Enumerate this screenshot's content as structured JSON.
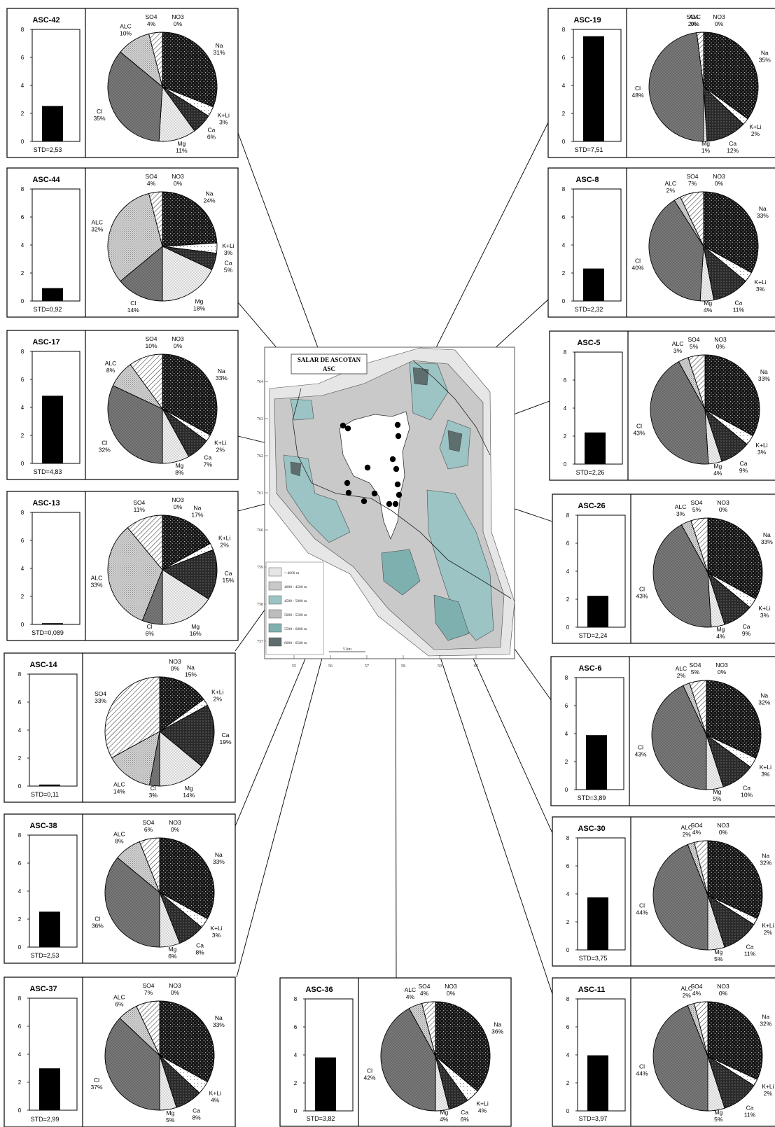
{
  "chart_data": [
    {
      "type": "pie+bar",
      "title": "ASC-42",
      "std": "STD=2,53",
      "bar_value": 2.53,
      "ylim": [
        0,
        8
      ],
      "yticks": [
        "0",
        "2",
        "4",
        "6",
        "8"
      ],
      "slices": [
        {
          "name": "NO3",
          "value": 0,
          "label": "0%"
        },
        {
          "name": "Na",
          "value": 31,
          "label": "31%"
        },
        {
          "name": "K+Li",
          "value": 3,
          "label": "3%"
        },
        {
          "name": "Ca",
          "value": 6,
          "label": "6%"
        },
        {
          "name": "Mg",
          "value": 11,
          "label": "11%"
        },
        {
          "name": "Cl",
          "value": 35,
          "label": "35%"
        },
        {
          "name": "ALC",
          "value": 10,
          "label": "10%"
        },
        {
          "name": "SO4",
          "value": 4,
          "label": "4%"
        }
      ]
    },
    {
      "type": "pie+bar",
      "title": "ASC-44",
      "std": "STD=0,92",
      "bar_value": 0.92,
      "ylim": [
        0,
        8
      ],
      "yticks": [
        "0",
        "2",
        "4",
        "6",
        "8"
      ],
      "slices": [
        {
          "name": "NO3",
          "value": 0,
          "label": "0%"
        },
        {
          "name": "Na",
          "value": 24,
          "label": "24%"
        },
        {
          "name": "K+Li",
          "value": 3,
          "label": "3%"
        },
        {
          "name": "Ca",
          "value": 5,
          "label": "5%"
        },
        {
          "name": "Mg",
          "value": 18,
          "label": "18%"
        },
        {
          "name": "Cl",
          "value": 14,
          "label": "14%"
        },
        {
          "name": "ALC",
          "value": 32,
          "label": "32%"
        },
        {
          "name": "SO4",
          "value": 4,
          "label": "4%"
        }
      ]
    },
    {
      "type": "pie+bar",
      "title": "ASC-17",
      "std": "STD=4,83",
      "bar_value": 4.83,
      "ylim": [
        0,
        8
      ],
      "yticks": [
        "0",
        "2",
        "4",
        "6",
        "8"
      ],
      "slices": [
        {
          "name": "NO3",
          "value": 0,
          "label": "0%"
        },
        {
          "name": "Na",
          "value": 33,
          "label": "33%"
        },
        {
          "name": "K+Li",
          "value": 2,
          "label": "2%"
        },
        {
          "name": "Ca",
          "value": 7,
          "label": "7%"
        },
        {
          "name": "Mg",
          "value": 8,
          "label": "8%"
        },
        {
          "name": "Cl",
          "value": 32,
          "label": "32%"
        },
        {
          "name": "ALC",
          "value": 8,
          "label": "8%"
        },
        {
          "name": "SO4",
          "value": 10,
          "label": "10%"
        }
      ]
    },
    {
      "type": "pie+bar",
      "title": "ASC-13",
      "std": "STD=0,089",
      "bar_value": 0.089,
      "ylim": [
        0,
        8
      ],
      "yticks": [
        "0",
        "2",
        "4",
        "6",
        "8"
      ],
      "slices": [
        {
          "name": "NO3",
          "value": 0,
          "label": "0%"
        },
        {
          "name": "Na",
          "value": 17,
          "label": "17%"
        },
        {
          "name": "K+Li",
          "value": 2,
          "label": "2%"
        },
        {
          "name": "Ca",
          "value": 15,
          "label": "15%"
        },
        {
          "name": "Mg",
          "value": 16,
          "label": "16%"
        },
        {
          "name": "Cl",
          "value": 6,
          "label": "6%"
        },
        {
          "name": "ALC",
          "value": 33,
          "label": "33%"
        },
        {
          "name": "SO4",
          "value": 11,
          "label": "11%"
        }
      ]
    },
    {
      "type": "pie+bar",
      "title": "ASC-14",
      "std": "STD=0,11",
      "bar_value": 0.11,
      "ylim": [
        0,
        8
      ],
      "yticks": [
        "0",
        "2",
        "4",
        "6",
        "8"
      ],
      "slices": [
        {
          "name": "NO3",
          "value": 0,
          "label": "0%"
        },
        {
          "name": "Na",
          "value": 15,
          "label": "15%"
        },
        {
          "name": "K+Li",
          "value": 2,
          "label": "2%"
        },
        {
          "name": "Ca",
          "value": 19,
          "label": "19%"
        },
        {
          "name": "Mg",
          "value": 14,
          "label": "14%"
        },
        {
          "name": "Cl",
          "value": 3,
          "label": "3%"
        },
        {
          "name": "ALC",
          "value": 14,
          "label": "14%"
        },
        {
          "name": "SO4",
          "value": 33,
          "label": "33%"
        }
      ]
    },
    {
      "type": "pie+bar",
      "title": "ASC-38",
      "std": "STD=2,53",
      "bar_value": 2.53,
      "ylim": [
        0,
        8
      ],
      "yticks": [
        "0",
        "2",
        "4",
        "6",
        "8"
      ],
      "slices": [
        {
          "name": "NO3",
          "value": 0,
          "label": "0%"
        },
        {
          "name": "Na",
          "value": 33,
          "label": "33%"
        },
        {
          "name": "K+Li",
          "value": 3,
          "label": "3%"
        },
        {
          "name": "Ca",
          "value": 8,
          "label": "8%"
        },
        {
          "name": "Mg",
          "value": 6,
          "label": "6%"
        },
        {
          "name": "Cl",
          "value": 36,
          "label": "36%"
        },
        {
          "name": "ALC",
          "value": 8,
          "label": "8%"
        },
        {
          "name": "SO4",
          "value": 6,
          "label": "6%"
        }
      ]
    },
    {
      "type": "pie+bar",
      "title": "ASC-37",
      "std": "STD=2,99",
      "bar_value": 2.99,
      "ylim": [
        0,
        8
      ],
      "yticks": [
        "0",
        "2",
        "4",
        "6",
        "8"
      ],
      "slices": [
        {
          "name": "NO3",
          "value": 0,
          "label": "0%"
        },
        {
          "name": "Na",
          "value": 33,
          "label": "33%"
        },
        {
          "name": "K+Li",
          "value": 4,
          "label": "4%"
        },
        {
          "name": "Ca",
          "value": 8,
          "label": "8%"
        },
        {
          "name": "Mg",
          "value": 5,
          "label": "5%"
        },
        {
          "name": "Cl",
          "value": 37,
          "label": "37%"
        },
        {
          "name": "ALC",
          "value": 6,
          "label": "6%"
        },
        {
          "name": "SO4",
          "value": 7,
          "label": "7%"
        }
      ]
    },
    {
      "type": "pie+bar",
      "title": "ASC-36",
      "std": "STD=3,82",
      "bar_value": 3.82,
      "ylim": [
        0,
        8
      ],
      "yticks": [
        "0",
        "2",
        "4",
        "6",
        "8"
      ],
      "slices": [
        {
          "name": "NO3",
          "value": 0,
          "label": "0%"
        },
        {
          "name": "Na",
          "value": 36,
          "label": "36%"
        },
        {
          "name": "K+Li",
          "value": 4,
          "label": "4%"
        },
        {
          "name": "Ca",
          "value": 6,
          "label": "6%"
        },
        {
          "name": "Mg",
          "value": 4,
          "label": "4%"
        },
        {
          "name": "Cl",
          "value": 42,
          "label": "42%"
        },
        {
          "name": "ALC",
          "value": 4,
          "label": "4%"
        },
        {
          "name": "SO4",
          "value": 4,
          "label": "4%"
        }
      ]
    },
    {
      "type": "pie+bar",
      "title": "ASC-19",
      "std": "STD=7,51",
      "bar_value": 7.51,
      "ylim": [
        0,
        8
      ],
      "yticks": [
        "0",
        "2",
        "4",
        "6",
        "8"
      ],
      "slices": [
        {
          "name": "NO3",
          "value": 0,
          "label": "0%"
        },
        {
          "name": "Na",
          "value": 35,
          "label": "35%"
        },
        {
          "name": "K+Li",
          "value": 2,
          "label": "2%"
        },
        {
          "name": "Ca",
          "value": 12,
          "label": "12%"
        },
        {
          "name": "Mg",
          "value": 1,
          "label": "1%"
        },
        {
          "name": "Cl",
          "value": 48,
          "label": "48%"
        },
        {
          "name": "ALC",
          "value": 0,
          "label": "0%"
        },
        {
          "name": "SO4",
          "value": 2,
          "label": "2%"
        }
      ]
    },
    {
      "type": "pie+bar",
      "title": "ASC-8",
      "std": "STD=2,32",
      "bar_value": 2.32,
      "ylim": [
        0,
        8
      ],
      "yticks": [
        "0",
        "2",
        "4",
        "6",
        "8"
      ],
      "slices": [
        {
          "name": "NO3",
          "value": 0,
          "label": "0%"
        },
        {
          "name": "Na",
          "value": 33,
          "label": "33%"
        },
        {
          "name": "K+Li",
          "value": 3,
          "label": "3%"
        },
        {
          "name": "Ca",
          "value": 11,
          "label": "11%"
        },
        {
          "name": "Mg",
          "value": 4,
          "label": "4%"
        },
        {
          "name": "Cl",
          "value": 40,
          "label": "40%"
        },
        {
          "name": "ALC",
          "value": 2,
          "label": "2%"
        },
        {
          "name": "SO4",
          "value": 7,
          "label": "7%"
        }
      ]
    },
    {
      "type": "pie+bar",
      "title": "ASC-5",
      "std": "STD=2,26",
      "bar_value": 2.26,
      "ylim": [
        0,
        8
      ],
      "yticks": [
        "0",
        "2",
        "4",
        "6",
        "8"
      ],
      "slices": [
        {
          "name": "NO3",
          "value": 0,
          "label": "0%"
        },
        {
          "name": "Na",
          "value": 33,
          "label": "33%"
        },
        {
          "name": "K+Li",
          "value": 3,
          "label": "3%"
        },
        {
          "name": "Ca",
          "value": 9,
          "label": "9%"
        },
        {
          "name": "Mg",
          "value": 4,
          "label": "4%"
        },
        {
          "name": "Cl",
          "value": 43,
          "label": "43%"
        },
        {
          "name": "ALC",
          "value": 3,
          "label": "3%"
        },
        {
          "name": "SO4",
          "value": 5,
          "label": "5%"
        }
      ]
    },
    {
      "type": "pie+bar",
      "title": "ASC-26",
      "std": "STD=2,24",
      "bar_value": 2.24,
      "ylim": [
        0,
        8
      ],
      "yticks": [
        "0",
        "2",
        "4",
        "6",
        "8"
      ],
      "slices": [
        {
          "name": "NO3",
          "value": 0,
          "label": "0%"
        },
        {
          "name": "Na",
          "value": 33,
          "label": "33%"
        },
        {
          "name": "K+Li",
          "value": 3,
          "label": "3%"
        },
        {
          "name": "Ca",
          "value": 9,
          "label": "9%"
        },
        {
          "name": "Mg",
          "value": 4,
          "label": "4%"
        },
        {
          "name": "Cl",
          "value": 43,
          "label": "43%"
        },
        {
          "name": "ALC",
          "value": 3,
          "label": "3%"
        },
        {
          "name": "SO4",
          "value": 5,
          "label": "5%"
        }
      ]
    },
    {
      "type": "pie+bar",
      "title": "ASC-6",
      "std": "STD=3,89",
      "bar_value": 3.89,
      "ylim": [
        0,
        8
      ],
      "yticks": [
        "0",
        "2",
        "4",
        "6",
        "8"
      ],
      "slices": [
        {
          "name": "NO3",
          "value": 0,
          "label": "0%"
        },
        {
          "name": "Na",
          "value": 32,
          "label": "32%"
        },
        {
          "name": "K+Li",
          "value": 3,
          "label": "3%"
        },
        {
          "name": "Ca",
          "value": 10,
          "label": "10%"
        },
        {
          "name": "Mg",
          "value": 5,
          "label": "5%"
        },
        {
          "name": "Cl",
          "value": 43,
          "label": "43%"
        },
        {
          "name": "ALC",
          "value": 2,
          "label": "2%"
        },
        {
          "name": "SO4",
          "value": 5,
          "label": "5%"
        }
      ]
    },
    {
      "type": "pie+bar",
      "title": "ASC-30",
      "std": "STD=3,75",
      "bar_value": 3.75,
      "ylim": [
        0,
        8
      ],
      "yticks": [
        "0",
        "2",
        "4",
        "6",
        "8"
      ],
      "slices": [
        {
          "name": "NO3",
          "value": 0,
          "label": "0%"
        },
        {
          "name": "Na",
          "value": 32,
          "label": "32%"
        },
        {
          "name": "K+Li",
          "value": 2,
          "label": "2%"
        },
        {
          "name": "Ca",
          "value": 11,
          "label": "11%"
        },
        {
          "name": "Mg",
          "value": 5,
          "label": "5%"
        },
        {
          "name": "Cl",
          "value": 44,
          "label": "44%"
        },
        {
          "name": "ALC",
          "value": 2,
          "label": "2%"
        },
        {
          "name": "SO4",
          "value": 4,
          "label": "4%"
        }
      ]
    },
    {
      "type": "pie+bar",
      "title": "ASC-11",
      "std": "STD=3,97",
      "bar_value": 3.97,
      "ylim": [
        0,
        8
      ],
      "yticks": [
        "0",
        "2",
        "4",
        "6",
        "8"
      ],
      "slices": [
        {
          "name": "NO3",
          "value": 0,
          "label": "0%"
        },
        {
          "name": "Na",
          "value": 32,
          "label": "32%"
        },
        {
          "name": "K+Li",
          "value": 2,
          "label": "2%"
        },
        {
          "name": "Ca",
          "value": 11,
          "label": "11%"
        },
        {
          "name": "Mg",
          "value": 5,
          "label": "5%"
        },
        {
          "name": "Cl",
          "value": 44,
          "label": "44%"
        },
        {
          "name": "ALC",
          "value": 2,
          "label": "2%"
        },
        {
          "name": "SO4",
          "value": 4,
          "label": "4%"
        }
      ]
    }
  ],
  "map": {
    "title_line1": "SALAR DE ASCOTAN",
    "title_line2": "ASC",
    "y_ticks": [
      "764",
      "763",
      "762",
      "761",
      "760",
      "759",
      "758",
      "757"
    ],
    "x_ticks": [
      "55",
      "56",
      "57",
      "58",
      "59",
      "60"
    ],
    "scale_label": "5 km",
    "legend": [
      "< 4000 m",
      "4000 - 4500 m",
      "4500 - 5000 m",
      "5000 - 5500 m",
      "5500 - 6000 m",
      "6000 - 6500 m"
    ],
    "legend_colors": [
      "#e6e6e6",
      "#c9c9c9",
      "#9cc4c4",
      "#bdbdbd",
      "#7fb0b0",
      "#5e6e6e"
    ]
  },
  "slice_fills": {
    "Na": "#111111",
    "K+Li": "#ffffff",
    "Ca": "#2b2b2b",
    "Mg": "#e8e8e8",
    "Cl": "#6f6f6f",
    "ALC": "#c4c4c4",
    "SO4": "#f0f0f0",
    "NO3": "#000000"
  }
}
